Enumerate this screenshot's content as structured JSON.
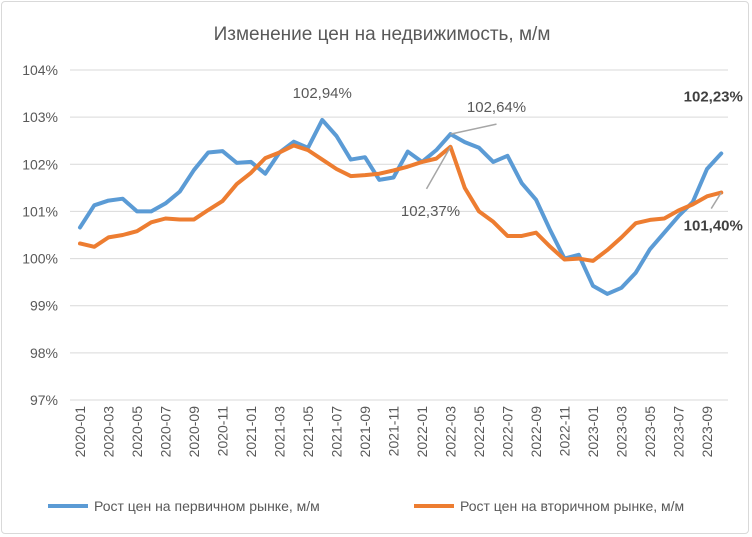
{
  "chart_data": {
    "type": "line",
    "title": "Изменение цен на недвижимость, м/м",
    "xlabel": "",
    "ylabel": "",
    "ylim": [
      97,
      104
    ],
    "yticks": [
      "97%",
      "98%",
      "99%",
      "100%",
      "101%",
      "102%",
      "103%",
      "104%"
    ],
    "grid": true,
    "legend": "bottom",
    "x": [
      "2020-01",
      "2020-02",
      "2020-03",
      "2020-04",
      "2020-05",
      "2020-06",
      "2020-07",
      "2020-08",
      "2020-09",
      "2020-10",
      "2020-11",
      "2020-12",
      "2021-01",
      "2021-02",
      "2021-03",
      "2021-04",
      "2021-05",
      "2021-06",
      "2021-07",
      "2021-08",
      "2021-09",
      "2021-10",
      "2021-11",
      "2021-12",
      "2022-01",
      "2022-02",
      "2022-03",
      "2022-04",
      "2022-05",
      "2022-06",
      "2022-07",
      "2022-08",
      "2022-09",
      "2022-10",
      "2022-11",
      "2022-12",
      "2023-01",
      "2023-02",
      "2023-03",
      "2023-04",
      "2023-05",
      "2023-06",
      "2023-07",
      "2023-08",
      "2023-09",
      "2023-10"
    ],
    "xtick_labels": [
      "2020-01",
      "2020-03",
      "2020-05",
      "2020-07",
      "2020-09",
      "2020-11",
      "2021-01",
      "2021-03",
      "2021-05",
      "2021-07",
      "2021-09",
      "2021-11",
      "2022-01",
      "2022-03",
      "2022-05",
      "2022-07",
      "2022-09",
      "2022-11",
      "2023-01",
      "2023-03",
      "2023-05",
      "2023-07",
      "2023-09"
    ],
    "series": [
      {
        "name": "Рост цен на первичном рынке, м/м",
        "color": "#5b9bd5",
        "values": [
          100.66,
          101.13,
          101.23,
          101.27,
          101.0,
          101.0,
          101.17,
          101.42,
          101.88,
          102.25,
          102.28,
          102.03,
          102.05,
          101.8,
          102.25,
          102.48,
          102.35,
          102.94,
          102.6,
          102.1,
          102.15,
          101.67,
          101.72,
          102.27,
          102.05,
          102.3,
          102.64,
          102.47,
          102.35,
          102.05,
          102.18,
          101.6,
          101.25,
          100.6,
          100.0,
          100.08,
          99.42,
          99.25,
          99.38,
          99.7,
          100.2,
          100.55,
          100.9,
          101.2,
          101.9,
          102.23
        ]
      },
      {
        "name": "Рост цен на вторичном рынке, м/м",
        "color": "#ed7d31",
        "values": [
          100.32,
          100.25,
          100.45,
          100.5,
          100.58,
          100.77,
          100.85,
          100.83,
          100.83,
          101.03,
          101.22,
          101.58,
          101.82,
          102.13,
          102.25,
          102.4,
          102.3,
          102.1,
          101.9,
          101.75,
          101.77,
          101.8,
          101.87,
          101.95,
          102.05,
          102.12,
          102.37,
          101.5,
          101.0,
          100.78,
          100.48,
          100.48,
          100.55,
          100.25,
          99.98,
          100.0,
          99.95,
          100.18,
          100.45,
          100.75,
          100.82,
          100.85,
          101.02,
          101.15,
          101.32,
          101.4
        ]
      }
    ],
    "annotations": [
      {
        "text": "102,94%",
        "series": 0,
        "x": "2021-06",
        "bold": false
      },
      {
        "text": "102,64%",
        "series": 0,
        "x": "2022-03",
        "bold": false
      },
      {
        "text": "102,37%",
        "series": 1,
        "x": "2022-03",
        "bold": false
      },
      {
        "text": "102,23%",
        "series": 0,
        "x": "2023-10",
        "bold": true
      },
      {
        "text": "101,40%",
        "series": 1,
        "x": "2023-10",
        "bold": true
      }
    ]
  }
}
